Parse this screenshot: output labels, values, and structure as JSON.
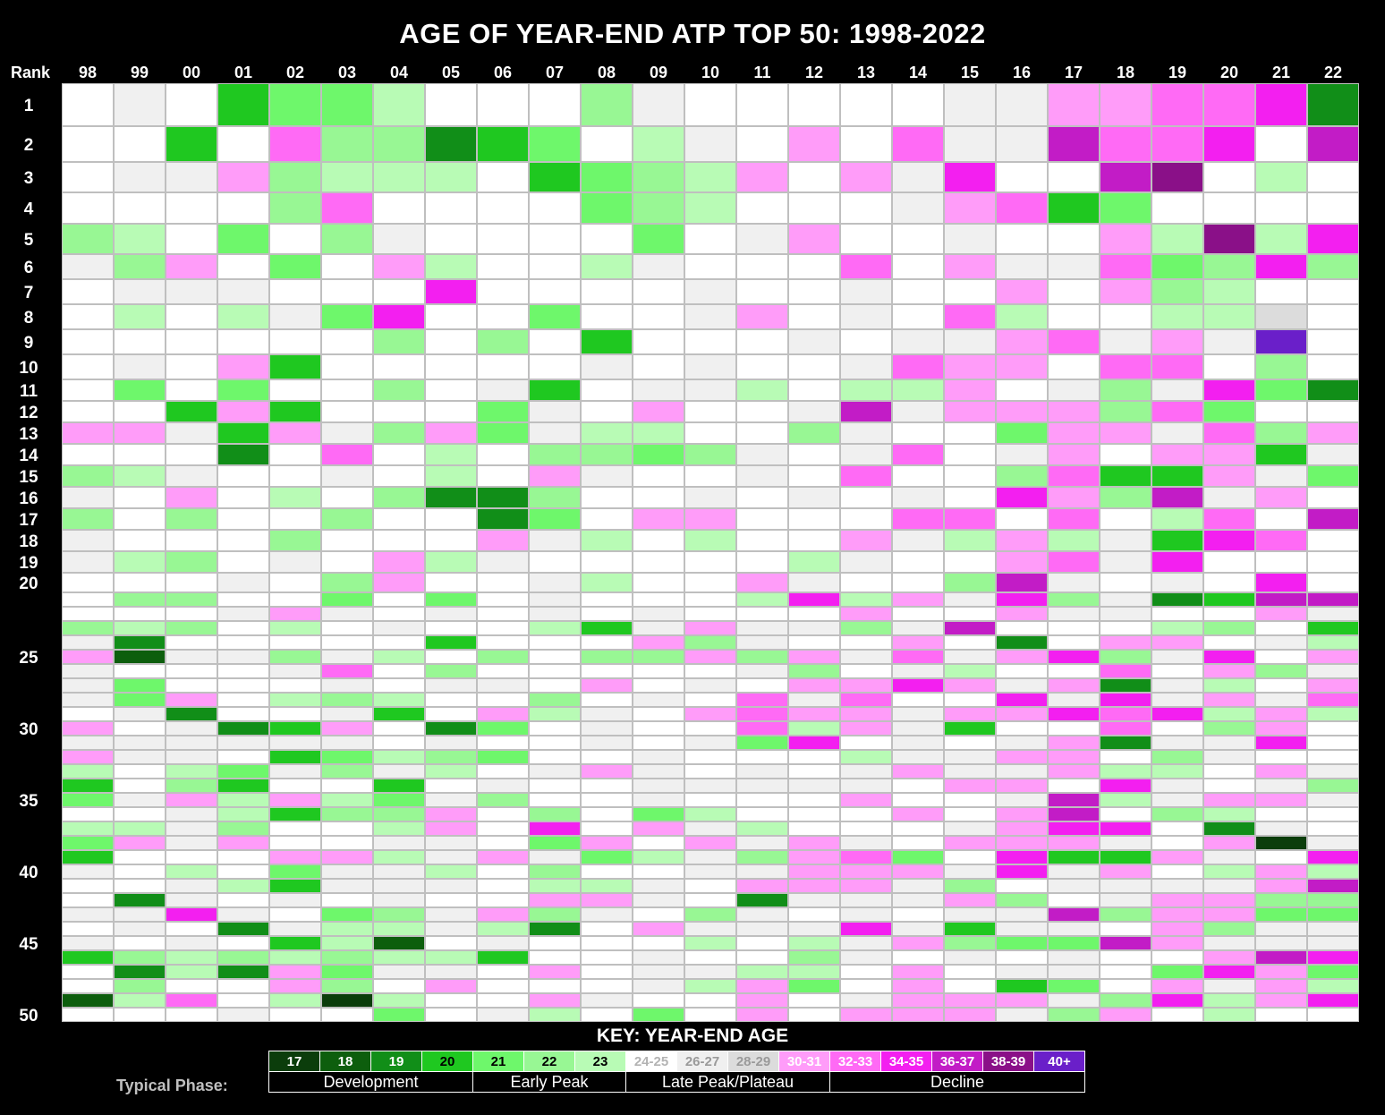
{
  "chart_data": {
    "type": "heatmap",
    "title": "AGE OF YEAR-END ATP TOP 50: 1998-2022",
    "row_axis_label": "Rank",
    "column_labels": [
      "98",
      "99",
      "00",
      "01",
      "02",
      "03",
      "04",
      "05",
      "06",
      "07",
      "08",
      "09",
      "10",
      "11",
      "12",
      "13",
      "14",
      "15",
      "16",
      "17",
      "18",
      "19",
      "20",
      "21",
      "22"
    ],
    "rank_tick_labels": [
      "1",
      "2",
      "3",
      "4",
      "5",
      "6",
      "7",
      "8",
      "9",
      "10",
      "11",
      "12",
      "13",
      "14",
      "15",
      "16",
      "17",
      "18",
      "19",
      "20",
      "25",
      "30",
      "35",
      "40",
      "45",
      "50"
    ],
    "rank_tick_values": [
      1,
      2,
      3,
      4,
      5,
      6,
      7,
      8,
      9,
      10,
      11,
      12,
      13,
      14,
      15,
      16,
      17,
      18,
      19,
      20,
      25,
      30,
      35,
      40,
      45,
      50
    ],
    "value_encoding": "age-bin index: 0=17,1=18,2=19,3=20,4=21,5=22,6=23,7=24-25,8=26-27,9=28-29,10=30-31,11=32-33,12=34-35,13=36-37,14=38-39,15=40+",
    "values": [
      [
        7,
        8,
        7,
        3,
        4,
        4,
        6,
        7,
        7,
        7,
        5,
        8,
        7,
        7,
        7,
        7,
        7,
        8,
        8,
        10,
        10,
        11,
        11,
        12,
        2
      ],
      [
        7,
        7,
        3,
        7,
        11,
        5,
        5,
        2,
        3,
        4,
        7,
        6,
        8,
        7,
        10,
        7,
        11,
        8,
        8,
        13,
        11,
        11,
        12,
        7,
        13
      ],
      [
        7,
        8,
        8,
        10,
        5,
        6,
        6,
        6,
        7,
        3,
        4,
        5,
        6,
        10,
        7,
        10,
        8,
        12,
        7,
        7,
        13,
        14,
        7,
        6,
        7
      ],
      [
        7,
        7,
        7,
        7,
        5,
        11,
        7,
        7,
        7,
        7,
        4,
        5,
        6,
        7,
        7,
        7,
        8,
        10,
        11,
        3,
        4,
        7,
        7,
        7,
        7
      ],
      [
        5,
        6,
        7,
        4,
        7,
        5,
        8,
        7,
        7,
        7,
        7,
        4,
        7,
        8,
        10,
        7,
        7,
        8,
        7,
        7,
        10,
        6,
        14,
        6,
        12
      ],
      [
        8,
        5,
        10,
        7,
        4,
        7,
        10,
        6,
        7,
        7,
        6,
        8,
        7,
        7,
        7,
        11,
        7,
        10,
        8,
        8,
        11,
        4,
        5,
        12,
        5
      ],
      [
        7,
        8,
        8,
        8,
        7,
        7,
        7,
        12,
        7,
        7,
        7,
        7,
        8,
        7,
        7,
        8,
        7,
        7,
        10,
        7,
        10,
        5,
        6,
        7,
        7
      ],
      [
        7,
        6,
        7,
        6,
        8,
        4,
        12,
        7,
        7,
        4,
        7,
        7,
        8,
        10,
        7,
        8,
        7,
        11,
        6,
        7,
        7,
        6,
        6,
        9,
        7
      ],
      [
        7,
        7,
        7,
        7,
        7,
        7,
        5,
        7,
        5,
        7,
        3,
        7,
        7,
        7,
        8,
        7,
        8,
        8,
        10,
        11,
        8,
        10,
        8,
        15,
        7
      ],
      [
        7,
        8,
        7,
        10,
        3,
        7,
        7,
        7,
        7,
        7,
        8,
        7,
        8,
        7,
        7,
        8,
        11,
        10,
        10,
        7,
        11,
        11,
        7,
        5,
        7
      ],
      [
        7,
        4,
        7,
        4,
        7,
        7,
        5,
        7,
        8,
        3,
        7,
        8,
        8,
        6,
        7,
        6,
        6,
        10,
        7,
        8,
        5,
        8,
        12,
        4,
        2
      ],
      [
        7,
        7,
        3,
        10,
        3,
        7,
        7,
        7,
        4,
        8,
        7,
        10,
        7,
        7,
        8,
        13,
        8,
        10,
        10,
        10,
        5,
        11,
        4,
        7,
        7
      ],
      [
        10,
        10,
        8,
        3,
        10,
        8,
        5,
        10,
        4,
        8,
        6,
        6,
        7,
        7,
        5,
        8,
        7,
        7,
        4,
        10,
        10,
        8,
        11,
        5,
        10
      ],
      [
        7,
        7,
        7,
        2,
        7,
        11,
        7,
        6,
        7,
        5,
        5,
        4,
        5,
        8,
        7,
        8,
        11,
        7,
        8,
        10,
        7,
        10,
        10,
        3,
        8
      ],
      [
        5,
        6,
        8,
        7,
        7,
        8,
        7,
        6,
        7,
        10,
        8,
        7,
        7,
        8,
        7,
        11,
        7,
        7,
        5,
        11,
        3,
        3,
        10,
        8,
        4
      ],
      [
        8,
        7,
        10,
        7,
        6,
        7,
        5,
        2,
        2,
        5,
        7,
        7,
        8,
        7,
        8,
        7,
        8,
        7,
        12,
        10,
        5,
        13,
        8,
        10,
        7
      ],
      [
        5,
        7,
        5,
        7,
        7,
        5,
        7,
        7,
        2,
        4,
        7,
        10,
        10,
        7,
        7,
        7,
        11,
        11,
        7,
        11,
        7,
        6,
        11,
        7,
        13
      ],
      [
        8,
        7,
        7,
        7,
        5,
        7,
        7,
        7,
        10,
        8,
        6,
        7,
        6,
        7,
        7,
        10,
        8,
        6,
        10,
        6,
        8,
        3,
        12,
        11,
        7
      ],
      [
        8,
        6,
        5,
        7,
        8,
        7,
        10,
        6,
        8,
        7,
        7,
        7,
        7,
        7,
        6,
        8,
        7,
        7,
        10,
        11,
        8,
        12,
        7,
        7,
        7
      ],
      [
        7,
        7,
        7,
        8,
        7,
        5,
        10,
        7,
        7,
        8,
        6,
        7,
        7,
        10,
        8,
        7,
        7,
        5,
        13,
        8,
        7,
        8,
        7,
        12,
        7
      ],
      [
        7,
        5,
        5,
        7,
        7,
        4,
        7,
        4,
        7,
        8,
        7,
        7,
        7,
        6,
        12,
        6,
        10,
        8,
        12,
        5,
        8,
        2,
        3,
        13,
        13
      ],
      [
        7,
        7,
        7,
        8,
        10,
        8,
        7,
        8,
        7,
        8,
        7,
        8,
        7,
        7,
        7,
        10,
        7,
        7,
        10,
        8,
        8,
        7,
        7,
        10,
        8
      ],
      [
        5,
        6,
        5,
        7,
        6,
        7,
        8,
        7,
        7,
        6,
        3,
        8,
        10,
        8,
        8,
        5,
        8,
        13,
        7,
        7,
        7,
        6,
        5,
        7,
        3
      ],
      [
        8,
        2,
        7,
        7,
        7,
        7,
        7,
        3,
        7,
        7,
        7,
        10,
        5,
        8,
        7,
        7,
        10,
        7,
        2,
        7,
        10,
        10,
        7,
        8,
        6
      ],
      [
        10,
        1,
        8,
        8,
        5,
        8,
        6,
        7,
        5,
        7,
        5,
        5,
        10,
        5,
        10,
        8,
        11,
        8,
        10,
        12,
        5,
        8,
        12,
        7,
        10
      ],
      [
        8,
        7,
        7,
        7,
        8,
        11,
        7,
        5,
        7,
        7,
        7,
        7,
        7,
        8,
        5,
        7,
        8,
        6,
        7,
        7,
        11,
        7,
        10,
        5,
        8
      ],
      [
        8,
        4,
        7,
        7,
        7,
        8,
        7,
        8,
        8,
        7,
        10,
        7,
        8,
        7,
        10,
        10,
        12,
        10,
        8,
        10,
        2,
        8,
        6,
        7,
        10
      ],
      [
        8,
        4,
        10,
        7,
        6,
        5,
        6,
        7,
        7,
        5,
        7,
        8,
        7,
        11,
        8,
        11,
        7,
        7,
        12,
        8,
        12,
        8,
        10,
        8,
        11
      ],
      [
        7,
        8,
        2,
        7,
        7,
        8,
        3,
        7,
        10,
        6,
        8,
        7,
        10,
        11,
        10,
        10,
        8,
        10,
        10,
        12,
        11,
        12,
        6,
        10,
        6
      ],
      [
        10,
        7,
        8,
        2,
        3,
        10,
        7,
        2,
        4,
        7,
        8,
        7,
        7,
        11,
        6,
        10,
        8,
        3,
        7,
        7,
        11,
        7,
        5,
        10,
        7
      ],
      [
        8,
        8,
        8,
        8,
        8,
        8,
        7,
        8,
        7,
        7,
        8,
        7,
        8,
        4,
        12,
        7,
        8,
        7,
        8,
        10,
        2,
        8,
        8,
        12,
        7
      ],
      [
        10,
        8,
        8,
        7,
        3,
        4,
        6,
        5,
        4,
        7,
        7,
        8,
        7,
        7,
        7,
        6,
        8,
        8,
        10,
        10,
        7,
        5,
        8,
        7,
        7
      ],
      [
        6,
        7,
        6,
        4,
        8,
        5,
        8,
        6,
        7,
        8,
        10,
        8,
        7,
        8,
        7,
        8,
        10,
        8,
        8,
        10,
        6,
        6,
        7,
        10,
        8
      ],
      [
        3,
        7,
        5,
        3,
        7,
        7,
        3,
        7,
        8,
        7,
        7,
        8,
        8,
        8,
        8,
        8,
        7,
        10,
        10,
        7,
        12,
        8,
        7,
        8,
        5
      ],
      [
        4,
        8,
        10,
        6,
        10,
        6,
        4,
        8,
        5,
        7,
        7,
        8,
        7,
        7,
        7,
        10,
        7,
        7,
        8,
        13,
        6,
        8,
        10,
        10,
        8
      ],
      [
        7,
        7,
        8,
        6,
        3,
        5,
        5,
        10,
        7,
        5,
        7,
        4,
        6,
        7,
        7,
        7,
        10,
        7,
        10,
        13,
        7,
        5,
        6,
        7,
        7
      ],
      [
        6,
        6,
        8,
        5,
        7,
        7,
        6,
        10,
        7,
        12,
        7,
        10,
        8,
        6,
        7,
        7,
        7,
        8,
        10,
        12,
        12,
        7,
        2,
        8,
        7
      ],
      [
        4,
        10,
        8,
        10,
        7,
        7,
        8,
        8,
        7,
        4,
        10,
        7,
        10,
        8,
        10,
        8,
        7,
        10,
        10,
        10,
        8,
        7,
        10,
        0,
        8
      ],
      [
        3,
        7,
        7,
        7,
        10,
        10,
        6,
        8,
        10,
        8,
        4,
        6,
        8,
        5,
        10,
        11,
        4,
        7,
        12,
        3,
        3,
        10,
        8,
        7,
        12
      ],
      [
        8,
        7,
        6,
        7,
        4,
        8,
        8,
        6,
        7,
        5,
        7,
        7,
        8,
        8,
        10,
        10,
        10,
        8,
        12,
        8,
        10,
        7,
        6,
        10,
        6
      ],
      [
        7,
        7,
        8,
        6,
        3,
        8,
        8,
        8,
        7,
        6,
        6,
        8,
        7,
        10,
        10,
        10,
        8,
        5,
        7,
        8,
        8,
        8,
        8,
        10,
        13
      ],
      [
        7,
        2,
        8,
        7,
        8,
        7,
        8,
        7,
        7,
        10,
        10,
        8,
        7,
        2,
        8,
        8,
        8,
        10,
        5,
        7,
        8,
        10,
        10,
        5,
        5
      ],
      [
        8,
        8,
        12,
        8,
        7,
        4,
        5,
        8,
        10,
        5,
        8,
        7,
        5,
        8,
        7,
        8,
        7,
        8,
        8,
        13,
        5,
        10,
        10,
        4,
        4
      ],
      [
        7,
        8,
        7,
        2,
        8,
        6,
        6,
        8,
        6,
        2,
        7,
        10,
        8,
        8,
        8,
        12,
        8,
        3,
        8,
        8,
        7,
        10,
        5,
        8,
        8
      ],
      [
        8,
        7,
        8,
        7,
        3,
        6,
        1,
        7,
        8,
        7,
        7,
        7,
        6,
        7,
        6,
        8,
        10,
        5,
        4,
        4,
        13,
        10,
        8,
        8,
        8
      ],
      [
        3,
        5,
        6,
        5,
        6,
        5,
        6,
        6,
        3,
        7,
        7,
        8,
        7,
        7,
        5,
        8,
        7,
        8,
        7,
        8,
        7,
        7,
        10,
        13,
        12
      ],
      [
        7,
        2,
        6,
        2,
        10,
        4,
        8,
        8,
        7,
        10,
        7,
        8,
        8,
        6,
        6,
        7,
        10,
        7,
        8,
        8,
        7,
        4,
        12,
        10,
        4
      ],
      [
        7,
        5,
        7,
        7,
        10,
        5,
        7,
        10,
        7,
        7,
        7,
        8,
        6,
        10,
        4,
        7,
        10,
        7,
        3,
        4,
        7,
        10,
        8,
        10,
        6
      ],
      [
        1,
        6,
        11,
        7,
        6,
        0,
        6,
        7,
        7,
        10,
        8,
        7,
        7,
        10,
        7,
        8,
        10,
        10,
        10,
        8,
        5,
        12,
        6,
        10,
        12
      ],
      [
        7,
        7,
        7,
        8,
        7,
        7,
        4,
        7,
        8,
        6,
        7,
        4,
        7,
        10,
        7,
        10,
        10,
        10,
        8,
        5,
        10,
        7,
        6,
        7,
        7
      ]
    ],
    "color_scale": [
      {
        "label": "17",
        "color": "#0b3d0b",
        "text_color": "#ffffff"
      },
      {
        "label": "18",
        "color": "#0d5e0d",
        "text_color": "#ffffff"
      },
      {
        "label": "19",
        "color": "#118e18",
        "text_color": "#ffffff"
      },
      {
        "label": "20",
        "color": "#1fc820",
        "text_color": "#000000"
      },
      {
        "label": "21",
        "color": "#6ef76b",
        "text_color": "#000000"
      },
      {
        "label": "22",
        "color": "#98f794",
        "text_color": "#000000"
      },
      {
        "label": "23",
        "color": "#b8fbb5",
        "text_color": "#000000"
      },
      {
        "label": "24-25",
        "color": "#ffffff",
        "text_color": "#b3b3b3"
      },
      {
        "label": "26-27",
        "color": "#f0f0f0",
        "text_color": "#9a9a9a"
      },
      {
        "label": "28-29",
        "color": "#dcdcdc",
        "text_color": "#9a9a9a"
      },
      {
        "label": "30-31",
        "color": "#ff9cf9",
        "text_color": "#ffffff"
      },
      {
        "label": "32-33",
        "color": "#ff6af5",
        "text_color": "#ffffff"
      },
      {
        "label": "34-35",
        "color": "#f31ff0",
        "text_color": "#ffffff"
      },
      {
        "label": "36-37",
        "color": "#c21cc6",
        "text_color": "#ffffff"
      },
      {
        "label": "38-39",
        "color": "#8a1088",
        "text_color": "#ffffff"
      },
      {
        "label": "40+",
        "color": "#6a1fc9",
        "text_color": "#ffffff"
      }
    ],
    "key_title": "KEY: YEAR-END AGE",
    "phase_label": "Typical Phase:",
    "phases": [
      {
        "label": "Development",
        "span": 4
      },
      {
        "label": "Early Peak",
        "span": 3
      },
      {
        "label": "Late Peak/Plateau",
        "span": 4
      },
      {
        "label": "Decline",
        "span": 5
      }
    ]
  }
}
